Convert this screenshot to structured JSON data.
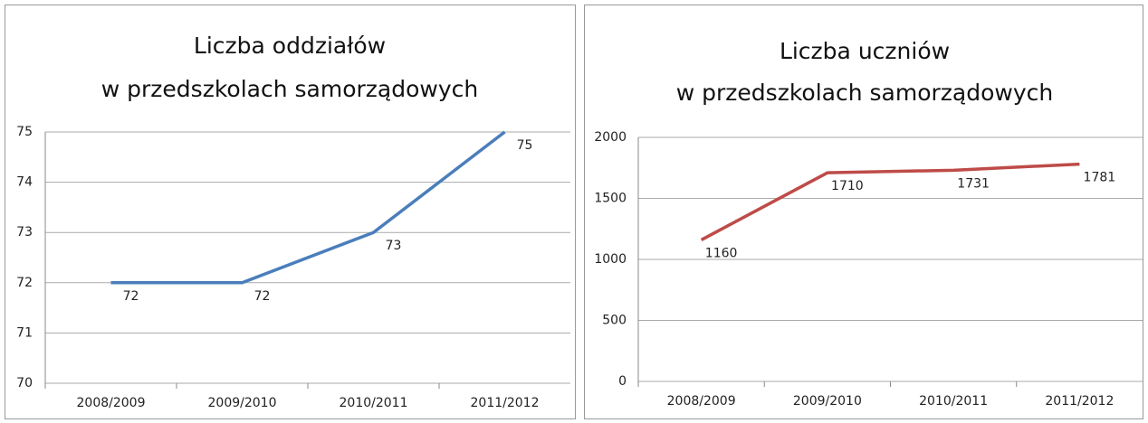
{
  "chart_data": [
    {
      "type": "line",
      "title": [
        "Liczba oddziałów",
        "w przedszkolach samorządowych"
      ],
      "categories": [
        "2008/2009",
        "2009/2010",
        "2010/2011",
        "2011/2012"
      ],
      "values": [
        72,
        72,
        73,
        75
      ],
      "color": "#4a7ebb",
      "ylim": [
        70,
        75
      ],
      "yticks": [
        70,
        71,
        72,
        73,
        74,
        75
      ],
      "grid": true
    },
    {
      "type": "line",
      "title": [
        "Liczba uczniów",
        "w przedszkolach samorządowych"
      ],
      "categories": [
        "2008/2009",
        "2009/2010",
        "2010/2011",
        "2011/2012"
      ],
      "values": [
        1160,
        1710,
        1731,
        1781
      ],
      "color": "#be4b48",
      "ylim": [
        0,
        2000
      ],
      "yticks": [
        0,
        500,
        1000,
        1500,
        2000
      ],
      "grid": true
    }
  ]
}
